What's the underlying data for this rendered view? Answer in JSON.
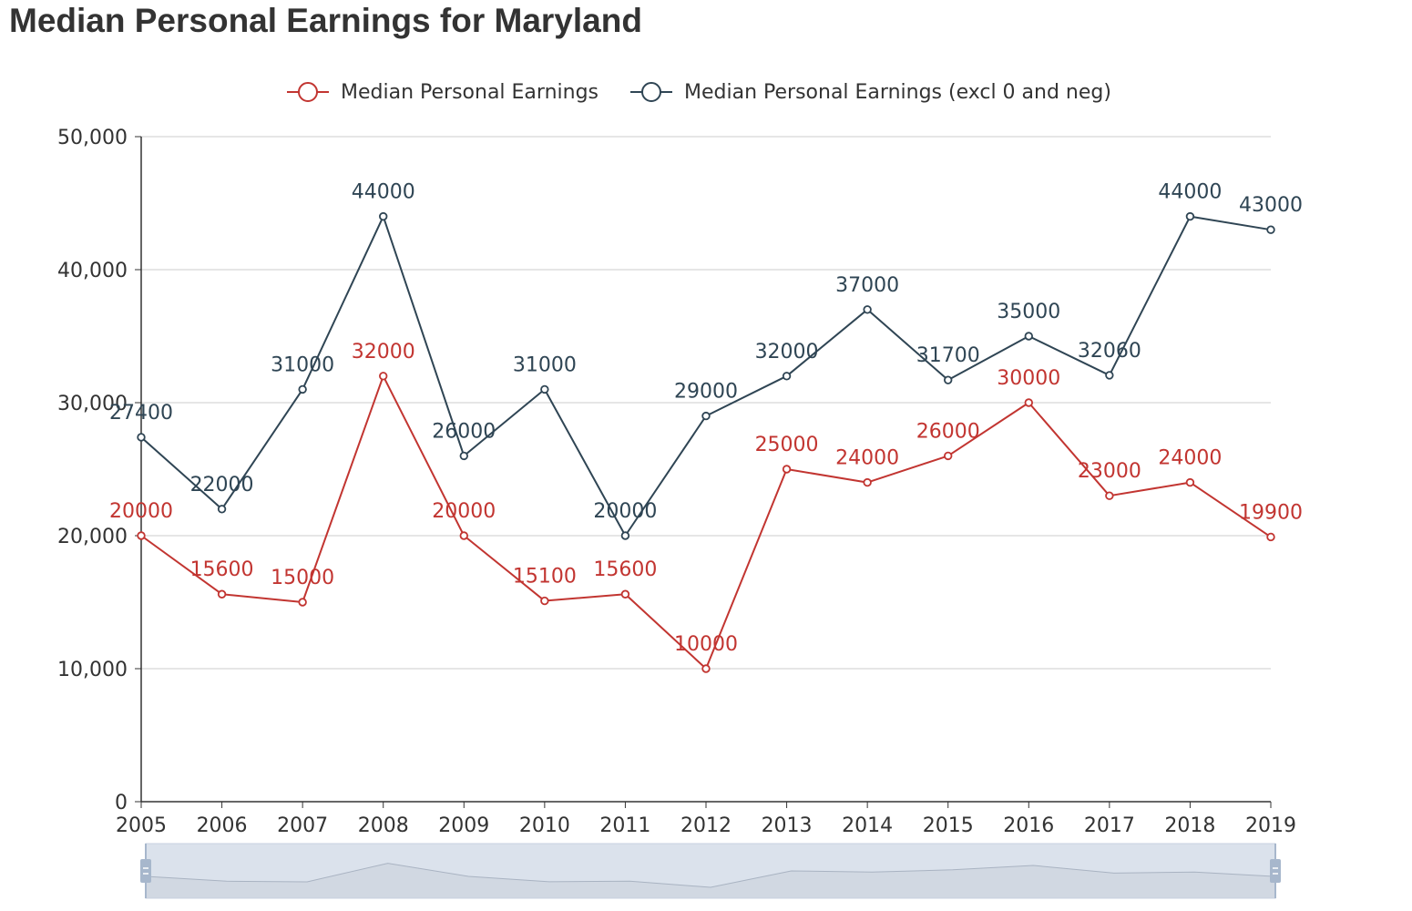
{
  "title": "Median Personal Earnings for Maryland",
  "colors": {
    "series1": "#c23531",
    "series2": "#2f4554",
    "grid": "#cccccc",
    "axis": "#333333",
    "zoom_fill": "#dbe2ec",
    "zoom_handle": "#a7b7cc"
  },
  "chart_data": {
    "type": "line",
    "title": "Median Personal Earnings for Maryland",
    "x": [
      "2005",
      "2006",
      "2007",
      "2008",
      "2009",
      "2010",
      "2011",
      "2012",
      "2013",
      "2014",
      "2015",
      "2016",
      "2017",
      "2018",
      "2019"
    ],
    "y_ticks": [
      "0",
      "10,000",
      "20,000",
      "30,000",
      "40,000",
      "50,000"
    ],
    "ylim": [
      0,
      50000
    ],
    "grid": true,
    "legend_position": "top-center",
    "data_zoom_slider": true,
    "series": [
      {
        "name": "Median Personal Earnings",
        "values": [
          20000,
          15600,
          15000,
          32000,
          20000,
          15100,
          15600,
          10000,
          25000,
          24000,
          26000,
          30000,
          23000,
          24000,
          19900
        ]
      },
      {
        "name": "Median Personal Earnings (excl 0 and neg)",
        "values": [
          27400,
          22000,
          31000,
          44000,
          26000,
          31000,
          20000,
          29000,
          32000,
          37000,
          31700,
          35000,
          32060,
          44000,
          43000
        ]
      }
    ]
  }
}
